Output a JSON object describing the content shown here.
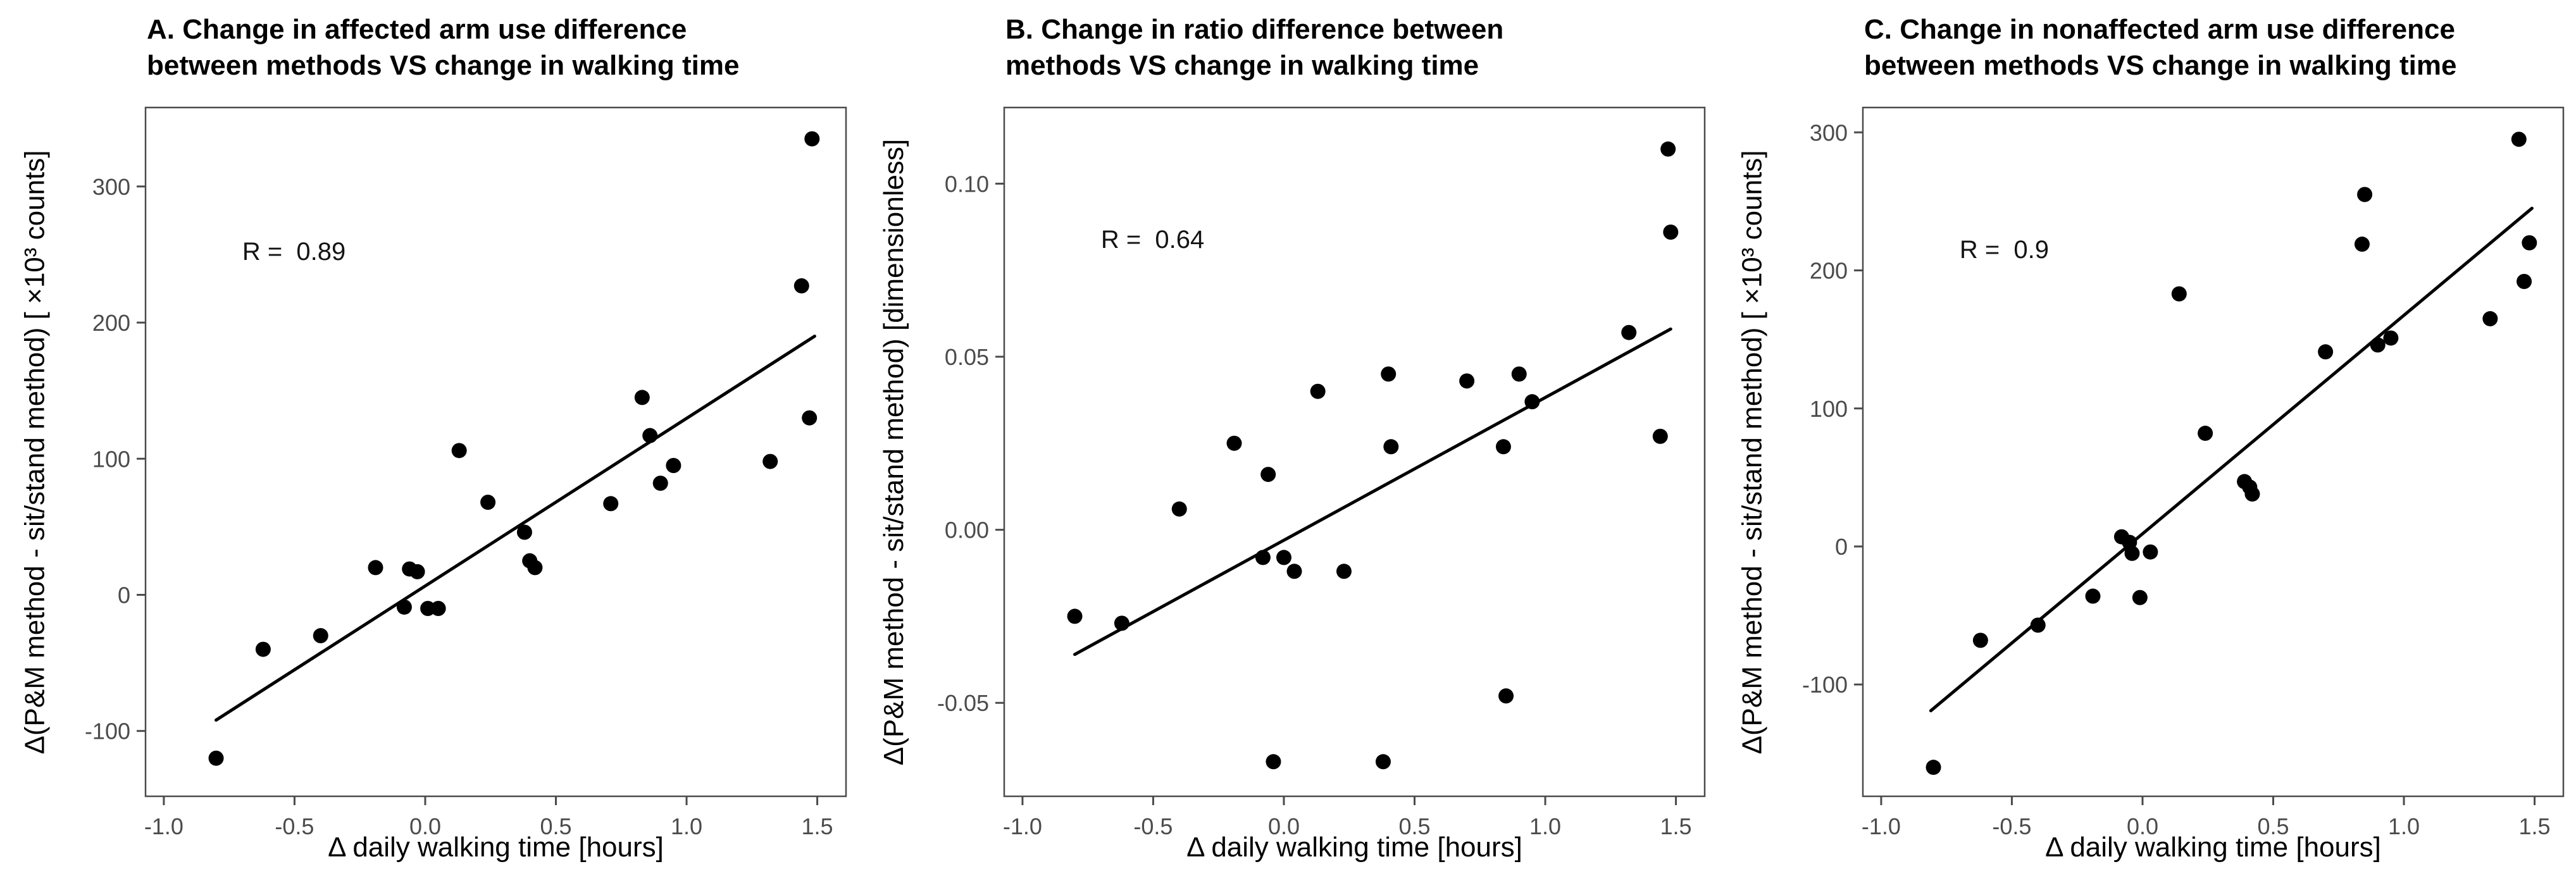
{
  "figure": {
    "background": "#ffffff",
    "colors": {
      "point_and_line": "#000000",
      "axis_and_border": "#4b4b4b",
      "tick_text": "#4b4b4b",
      "title_text": "#000000"
    }
  },
  "chart_data": [
    {
      "type": "scatter",
      "panel": "A",
      "title_line1": "A. Change in affected arm use difference",
      "title_line2": "between methods VS change in walking time",
      "xlabel": "Δ daily walking time [hours]",
      "ylabel": "Δ(P&M method - sit/stand method) [ ×10³ counts]",
      "r_label": "R =  0.89",
      "r_pos": {
        "x": -0.7,
        "y": 250
      },
      "xlim": [
        -1.07,
        1.61
      ],
      "ylim": [
        -148,
        358
      ],
      "xticks": [
        -1.0,
        -0.5,
        0.0,
        0.5,
        1.0,
        1.5
      ],
      "xtick_labels": [
        "-1.0",
        "-0.5",
        "0.0",
        "0.5",
        "1.0",
        "1.5"
      ],
      "yticks": [
        -100,
        0,
        100,
        200,
        300
      ],
      "ytick_labels": [
        "-100",
        "0",
        "100",
        "200",
        "300"
      ],
      "grid": false,
      "legend": "none",
      "points": [
        [
          -0.8,
          -120
        ],
        [
          -0.62,
          -40
        ],
        [
          -0.4,
          -30
        ],
        [
          -0.19,
          20
        ],
        [
          -0.08,
          -9
        ],
        [
          -0.06,
          19
        ],
        [
          -0.03,
          17
        ],
        [
          0.01,
          -10
        ],
        [
          0.05,
          -10
        ],
        [
          0.13,
          106
        ],
        [
          0.24,
          68
        ],
        [
          0.38,
          46
        ],
        [
          0.4,
          25
        ],
        [
          0.42,
          20
        ],
        [
          0.71,
          67
        ],
        [
          0.83,
          145
        ],
        [
          0.86,
          117
        ],
        [
          0.9,
          82
        ],
        [
          0.95,
          95
        ],
        [
          1.32,
          98
        ],
        [
          1.44,
          227
        ],
        [
          1.47,
          130
        ],
        [
          1.48,
          335
        ]
      ],
      "fit_line": {
        "x1": -0.8,
        "y1": -92,
        "x2": 1.49,
        "y2": 190
      }
    },
    {
      "type": "scatter",
      "panel": "B",
      "title_line1": "B. Change in ratio difference between",
      "title_line2": "methods VS change in walking time",
      "xlabel": "Δ daily walking time [hours]",
      "ylabel": "Δ(P&M method - sit/stand method) [dimensionless]",
      "r_label": "R =  0.64",
      "r_pos": {
        "x": -0.7,
        "y": 0.083
      },
      "xlim": [
        -1.07,
        1.61
      ],
      "ylim": [
        -0.077,
        0.122
      ],
      "xticks": [
        -1.0,
        -0.5,
        0.0,
        0.5,
        1.0,
        1.5
      ],
      "xtick_labels": [
        "-1.0",
        "-0.5",
        "0.0",
        "0.5",
        "1.0",
        "1.5"
      ],
      "yticks": [
        -0.05,
        0.0,
        0.05,
        0.1
      ],
      "ytick_labels": [
        "-0.05",
        "0.00",
        "0.05",
        "0.10"
      ],
      "grid": false,
      "legend": "none",
      "points": [
        [
          -0.8,
          -0.025
        ],
        [
          -0.62,
          -0.027
        ],
        [
          -0.4,
          0.006
        ],
        [
          -0.19,
          0.025
        ],
        [
          -0.08,
          -0.008
        ],
        [
          -0.06,
          0.016
        ],
        [
          0.0,
          -0.008
        ],
        [
          0.04,
          -0.012
        ],
        [
          -0.04,
          -0.067
        ],
        [
          0.13,
          0.04
        ],
        [
          0.23,
          -0.012
        ],
        [
          0.38,
          -0.067
        ],
        [
          0.4,
          0.045
        ],
        [
          0.41,
          0.024
        ],
        [
          0.7,
          0.043
        ],
        [
          0.84,
          0.024
        ],
        [
          0.85,
          -0.048
        ],
        [
          0.9,
          0.045
        ],
        [
          0.95,
          0.037
        ],
        [
          1.32,
          0.057
        ],
        [
          1.44,
          0.027
        ],
        [
          1.47,
          0.11
        ],
        [
          1.48,
          0.086
        ]
      ],
      "fit_line": {
        "x1": -0.8,
        "y1": -0.036,
        "x2": 1.48,
        "y2": 0.058
      }
    },
    {
      "type": "scatter",
      "panel": "C",
      "title_line1": "C. Change in nonaffected arm use difference",
      "title_line2": "between methods VS change in walking time",
      "xlabel": "Δ daily walking time [hours]",
      "ylabel": "Δ(P&M method - sit/stand method) [ ×10³ counts]",
      "r_label": "R =  0.9",
      "r_pos": {
        "x": -0.7,
        "y": 213
      },
      "xlim": [
        -1.07,
        1.61
      ],
      "ylim": [
        -181,
        318
      ],
      "xticks": [
        -1.0,
        -0.5,
        0.0,
        0.5,
        1.0,
        1.5
      ],
      "xtick_labels": [
        "-1.0",
        "-0.5",
        "0.0",
        "0.5",
        "1.0",
        "1.5"
      ],
      "yticks": [
        -100,
        0,
        100,
        200,
        300
      ],
      "ytick_labels": [
        "-100",
        "0",
        "100",
        "200",
        "300"
      ],
      "grid": false,
      "legend": "none",
      "points": [
        [
          -0.8,
          -160
        ],
        [
          -0.62,
          -68
        ],
        [
          -0.4,
          -57
        ],
        [
          -0.19,
          -36
        ],
        [
          -0.08,
          7
        ],
        [
          -0.05,
          3
        ],
        [
          -0.04,
          -5
        ],
        [
          0.03,
          -4
        ],
        [
          -0.01,
          -37
        ],
        [
          0.14,
          183
        ],
        [
          0.24,
          82
        ],
        [
          0.39,
          47
        ],
        [
          0.41,
          43
        ],
        [
          0.42,
          38
        ],
        [
          0.7,
          141
        ],
        [
          0.84,
          219
        ],
        [
          0.85,
          255
        ],
        [
          0.9,
          146
        ],
        [
          0.95,
          151
        ],
        [
          1.33,
          165
        ],
        [
          1.44,
          295
        ],
        [
          1.46,
          192
        ],
        [
          1.48,
          220
        ]
      ],
      "fit_line": {
        "x1": -0.81,
        "y1": -119,
        "x2": 1.49,
        "y2": 245
      }
    }
  ]
}
